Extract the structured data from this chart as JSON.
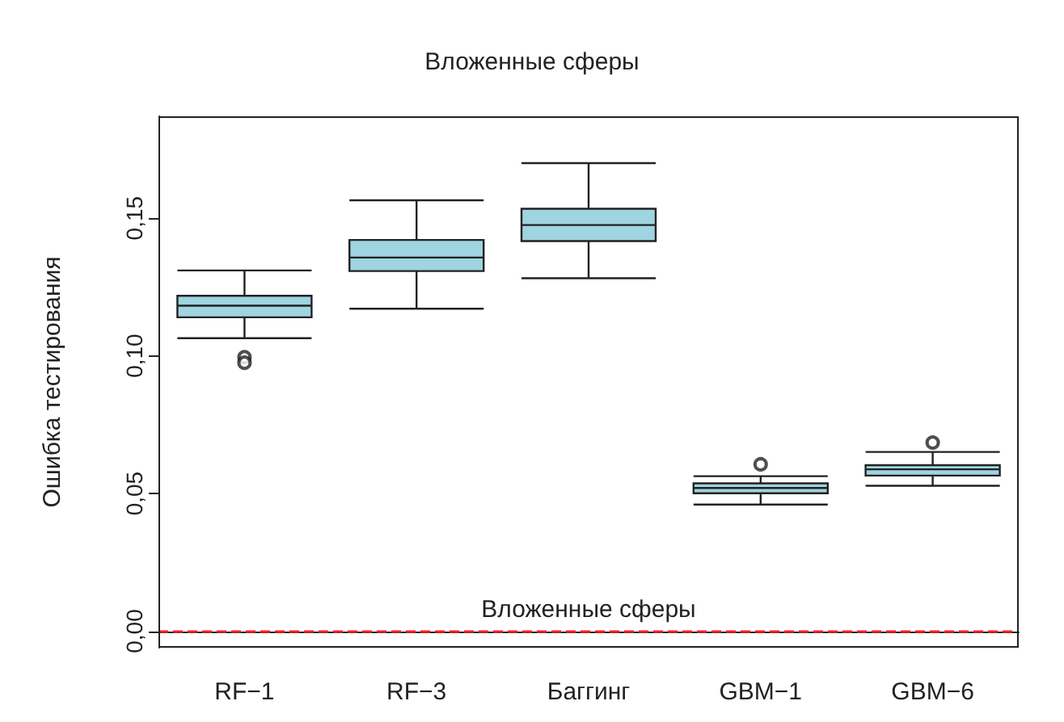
{
  "chart_data": {
    "type": "box",
    "title": "Вложенные сферы",
    "ylabel": "Ошибка тестирования",
    "categories": [
      "RF−1",
      "RF−3",
      "Баггинг",
      "GBM−1",
      "GBM−6"
    ],
    "series": [
      {
        "color": "#9fd4e0",
        "boxes": [
          {
            "low": 0.1064,
            "q1": 0.114,
            "median": 0.1182,
            "q3": 0.1218,
            "high": 0.131,
            "outliers": [
              0.0995,
              0.0975
            ]
          },
          {
            "low": 0.1171,
            "q1": 0.1308,
            "median": 0.1357,
            "q3": 0.1421,
            "high": 0.1565
          },
          {
            "low": 0.1282,
            "q1": 0.1417,
            "median": 0.1475,
            "q3": 0.1534,
            "high": 0.17
          },
          {
            "low": 0.046,
            "q1": 0.0501,
            "median": 0.052,
            "q3": 0.0537,
            "high": 0.0563,
            "outliers": [
              0.0606
            ]
          },
          {
            "low": 0.0528,
            "q1": 0.0565,
            "median": 0.0588,
            "q3": 0.0603,
            "high": 0.0651,
            "outliers": [
              0.0685
            ]
          }
        ]
      }
    ],
    "ylim": [
      -0.006,
      0.187
    ],
    "yticks": [
      {
        "value": 0,
        "label": "0,00"
      },
      {
        "value": 0.05,
        "label": "0,05"
      },
      {
        "value": 0.1,
        "label": "0,10"
      },
      {
        "value": 0.15,
        "label": "0,15"
      }
    ],
    "ref_lines": [
      {
        "axis": "y",
        "value": 0,
        "label": "Вложенные сферы",
        "color": "#ff2020",
        "line_style": "dashed"
      }
    ],
    "grid": false
  }
}
